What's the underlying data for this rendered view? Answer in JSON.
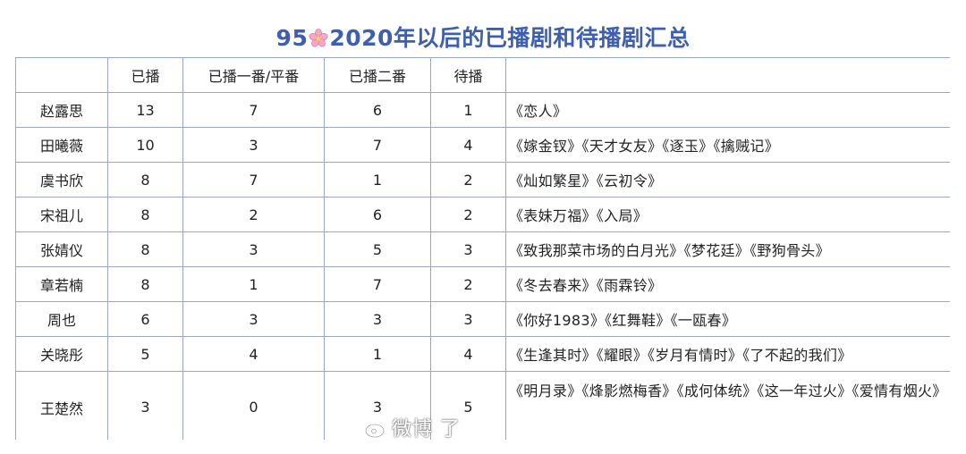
{
  "title": {
    "prefix": "95",
    "icon": "cherry-blossom-icon",
    "suffix": "2020年以后的已播剧和待播剧汇总"
  },
  "colors": {
    "title": "#3e5fae",
    "grid": "#9aa6c4",
    "flower": "#f4a7c6"
  },
  "table": {
    "headers": [
      "",
      "已播",
      "已播一番/平番",
      "已播二番",
      "待播",
      ""
    ],
    "rows": [
      {
        "name": "赵露思",
        "aired": "13",
        "lead": "7",
        "second": "6",
        "upcoming": "1",
        "works": "《恋人》"
      },
      {
        "name": "田曦薇",
        "aired": "10",
        "lead": "3",
        "second": "7",
        "upcoming": "4",
        "works": "《嫁金钗》《天才女友》《逐玉》《擒贼记》"
      },
      {
        "name": "虞书欣",
        "aired": "8",
        "lead": "7",
        "second": "1",
        "upcoming": "2",
        "works": "《灿如繁星》《云初令》"
      },
      {
        "name": "宋祖儿",
        "aired": "8",
        "lead": "2",
        "second": "6",
        "upcoming": "2",
        "works": "《表妹万福》《入局》"
      },
      {
        "name": "张婧仪",
        "aired": "8",
        "lead": "3",
        "second": "5",
        "upcoming": "3",
        "works": "《致我那菜市场的白月光》《梦花廷》《野狗骨头》"
      },
      {
        "name": "章若楠",
        "aired": "8",
        "lead": "1",
        "second": "7",
        "upcoming": "2",
        "works": "《冬去春来》《雨霖铃》"
      },
      {
        "name": "周也",
        "aired": "6",
        "lead": "3",
        "second": "3",
        "upcoming": "3",
        "works": "《你好1983》《红舞鞋》《一瓯春》"
      },
      {
        "name": "关晓彤",
        "aired": "5",
        "lead": "4",
        "second": "1",
        "upcoming": "4",
        "works": "《生逢其时》《耀眼》《岁月有情时》《了不起的我们》"
      },
      {
        "name": "王楚然",
        "aired": "3",
        "lead": "0",
        "second": "3",
        "upcoming": "5",
        "works": "《明月录》《烽影燃梅香》《成何体统》《这一年过火》《爱情有烟火》"
      }
    ]
  },
  "watermark": {
    "icon": "weibo-logo-icon",
    "text": "微博 了"
  }
}
